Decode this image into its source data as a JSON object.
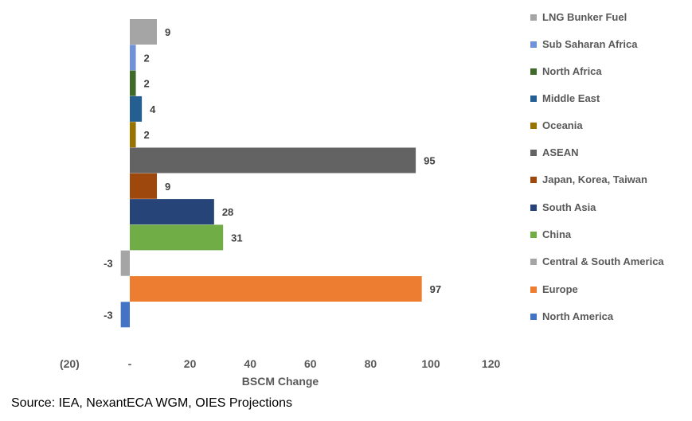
{
  "chart_data": {
    "type": "bar",
    "orientation": "horizontal",
    "categories": [
      "LNG Bunker Fuel",
      "Sub Saharan Africa",
      "North Africa",
      "Middle East",
      "Oceania",
      "ASEAN",
      "Japan, Korea, Taiwan",
      "South Asia",
      "China",
      "Central & South America",
      "Europe",
      "North America"
    ],
    "values": [
      9,
      2,
      2,
      4,
      2,
      95,
      9,
      28,
      31,
      -3,
      97,
      -3
    ],
    "colors": [
      "#a5a5a5",
      "#6f92d8",
      "#3f6a2a",
      "#255e91",
      "#997300",
      "#636363",
      "#9e480e",
      "#264478",
      "#70ad47",
      "#a5a5a5",
      "#ed7d31",
      "#4472c4"
    ],
    "data_labels": [
      "9",
      "2",
      "2",
      "4",
      "2",
      "95",
      "9",
      "28",
      "31",
      "-3",
      "97",
      "-3"
    ],
    "xlim": [
      -20,
      120
    ],
    "xticks": [
      -20,
      0,
      20,
      40,
      60,
      80,
      100,
      120
    ],
    "xtick_labels": [
      "(20)",
      "-",
      "20",
      "40",
      "60",
      "80",
      "100",
      "120"
    ],
    "xlabel": "BSCM Change",
    "ylabel": "",
    "title": "",
    "grid": false,
    "legend_position": "right",
    "legend": [
      "LNG Bunker Fuel",
      "Sub Saharan Africa",
      "North Africa",
      "Middle East",
      "Oceania",
      "ASEAN",
      "Japan, Korea, Taiwan",
      "South Asia",
      "China",
      "Central & South America",
      "Europe",
      "North America"
    ]
  },
  "source": "Source: IEA, NexantECA WGM, OIES Projections"
}
